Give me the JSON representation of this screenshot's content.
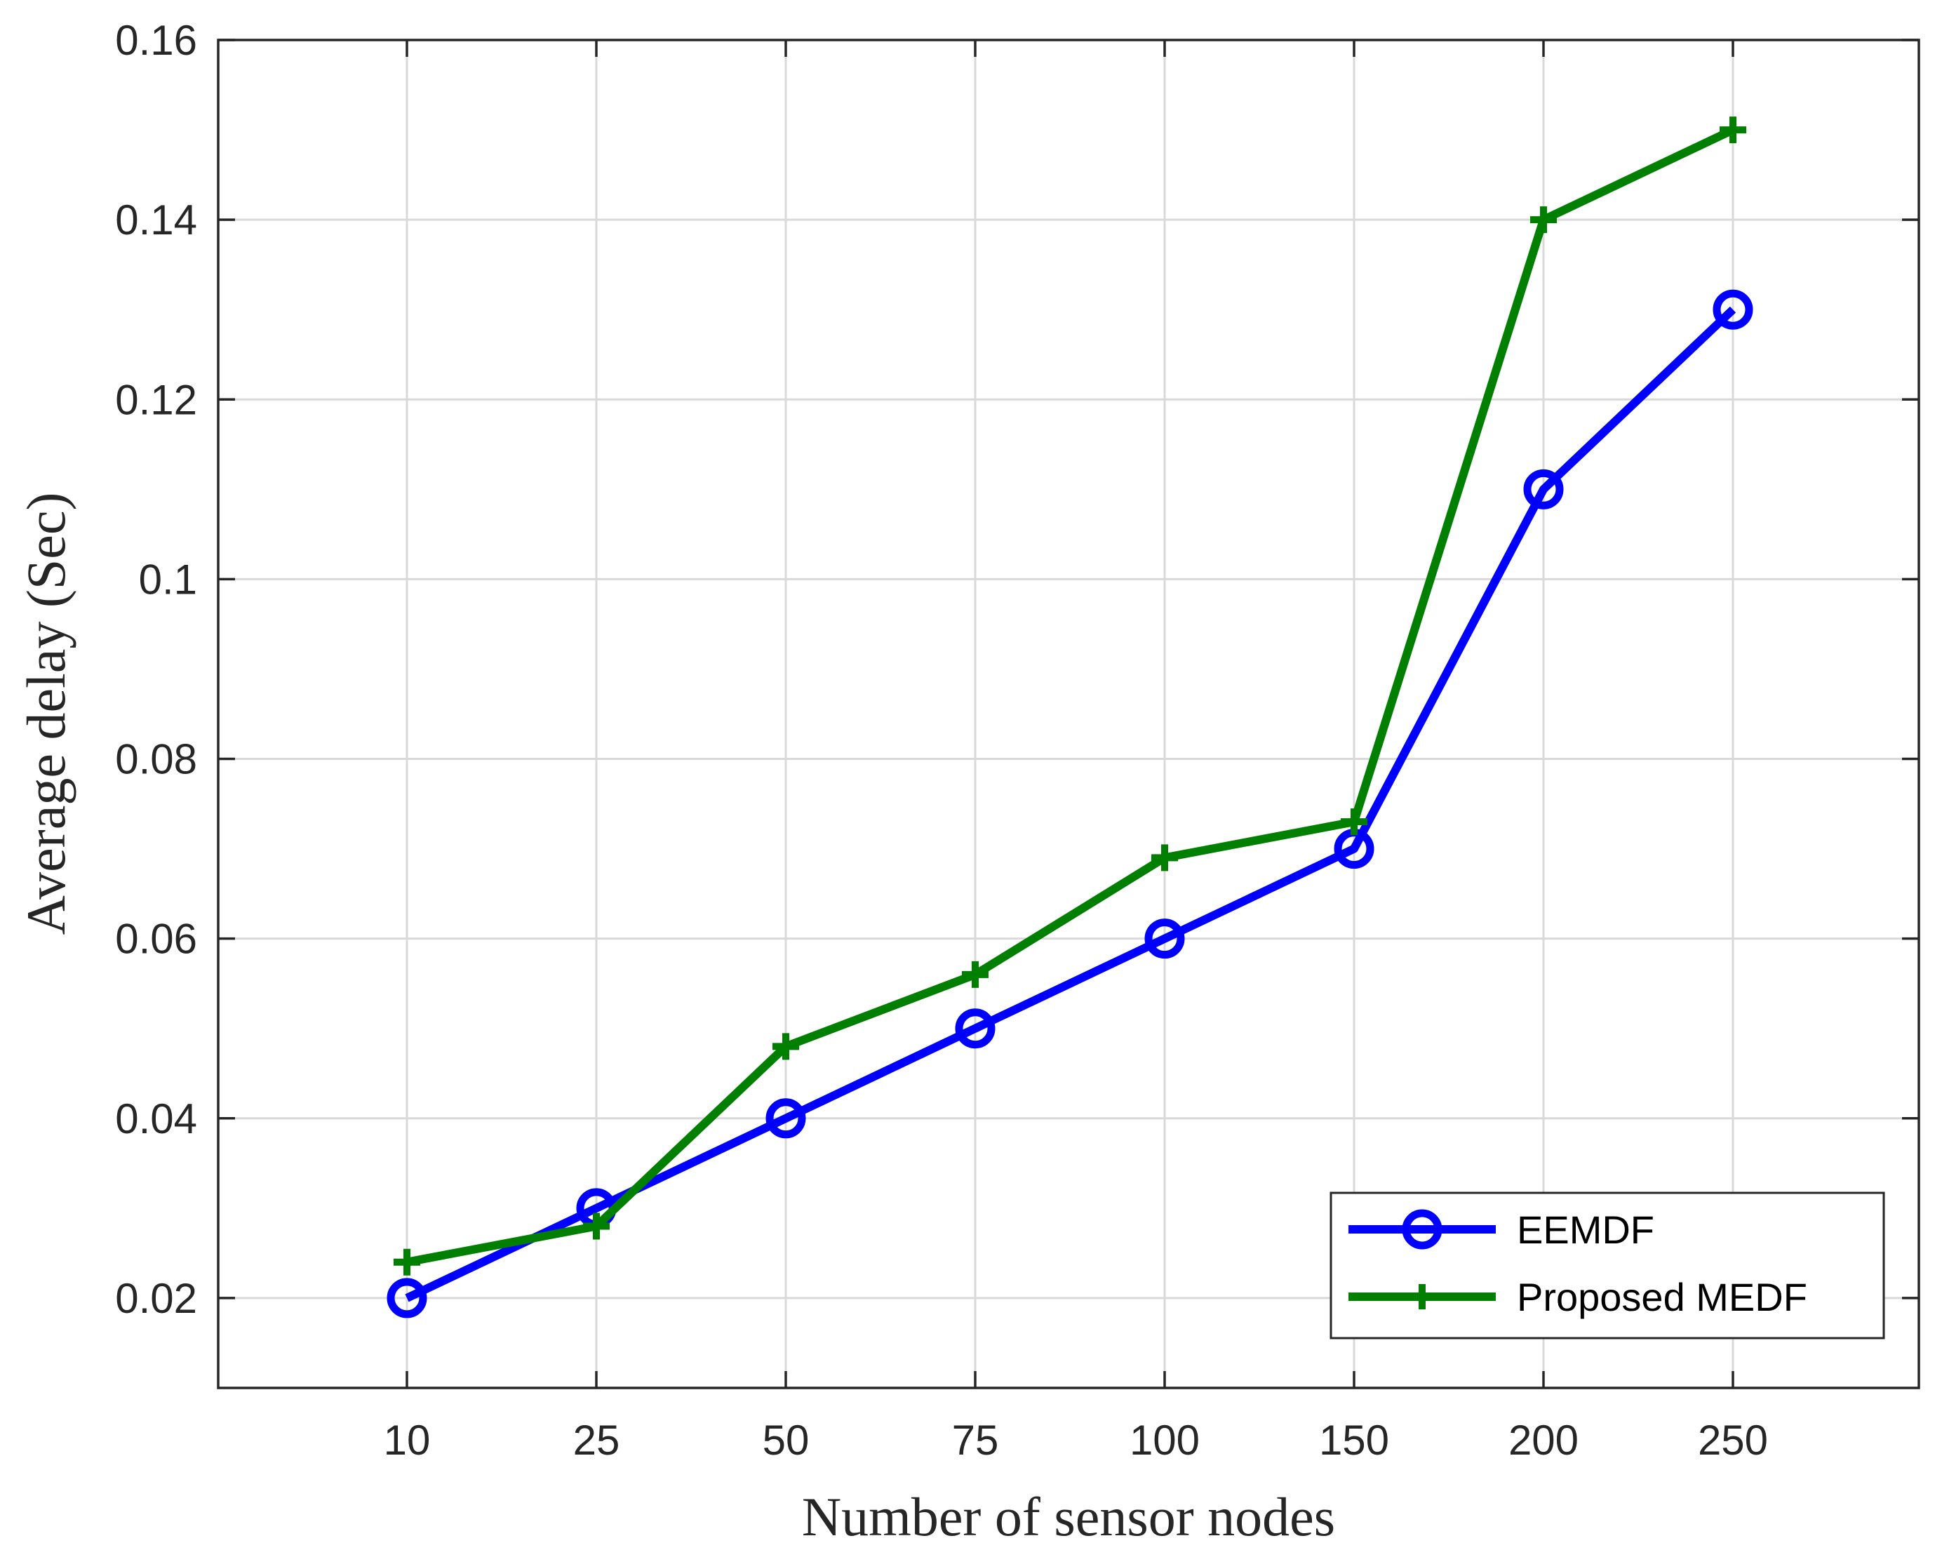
{
  "chart_data": {
    "type": "line",
    "categories": [
      "10",
      "25",
      "50",
      "75",
      "100",
      "150",
      "200",
      "250"
    ],
    "series": [
      {
        "name": "EEMDF",
        "color": "#0000ff",
        "marker": "circle",
        "values": [
          0.02,
          0.03,
          0.04,
          0.05,
          0.06,
          0.07,
          0.11,
          0.13
        ]
      },
      {
        "name": "Proposed MEDF",
        "color": "#007f00",
        "marker": "plus",
        "values": [
          0.024,
          0.028,
          0.048,
          0.056,
          0.069,
          0.073,
          0.14,
          0.15
        ]
      }
    ],
    "xlabel": "Number of sensor nodes",
    "ylabel": "Average delay (Sec)",
    "ylim": [
      0.01,
      0.16
    ],
    "yticks": [
      "0.02",
      "0.04",
      "0.06",
      "0.08",
      "0.1",
      "0.12",
      "0.14",
      "0.16"
    ],
    "grid": true,
    "legend_position": "bottom-right"
  }
}
